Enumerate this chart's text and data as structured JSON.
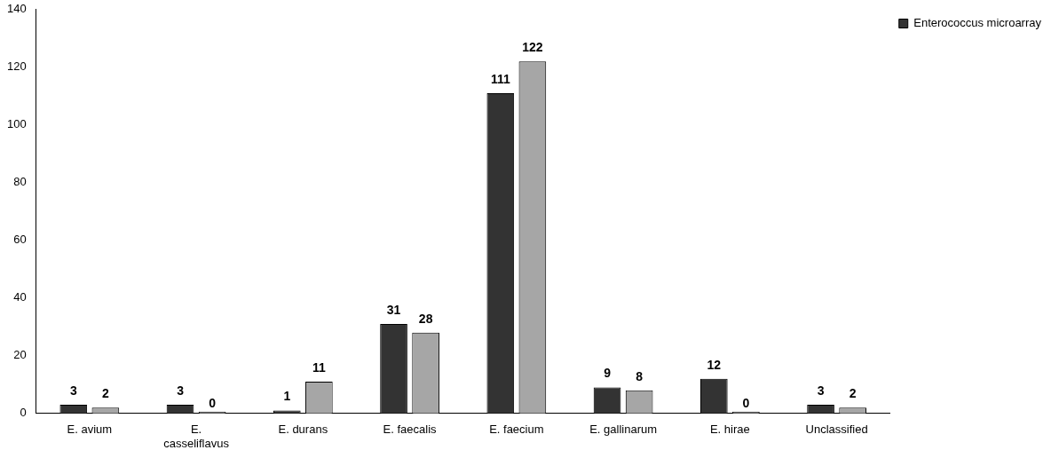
{
  "chart_data": {
    "type": "bar",
    "categories": [
      "E. avium",
      "E. casseliflavus",
      "E. durans",
      "E. faecalis",
      "E. faecium",
      "E. gallinarum",
      "E. hirae",
      "Unclassified"
    ],
    "series": [
      {
        "name": "Enterococcus microarray",
        "color": "#333333",
        "values": [
          3,
          3,
          1,
          31,
          111,
          9,
          12,
          3
        ]
      },
      {
        "color": "#a6a6a6",
        "values": [
          2,
          0,
          11,
          28,
          122,
          8,
          0,
          2
        ]
      }
    ],
    "ylim": [
      0,
      140
    ],
    "yticks": [
      0,
      20,
      40,
      60,
      80,
      100,
      120,
      140
    ],
    "grid": false,
    "legend": "top right",
    "data_labels": true
  }
}
